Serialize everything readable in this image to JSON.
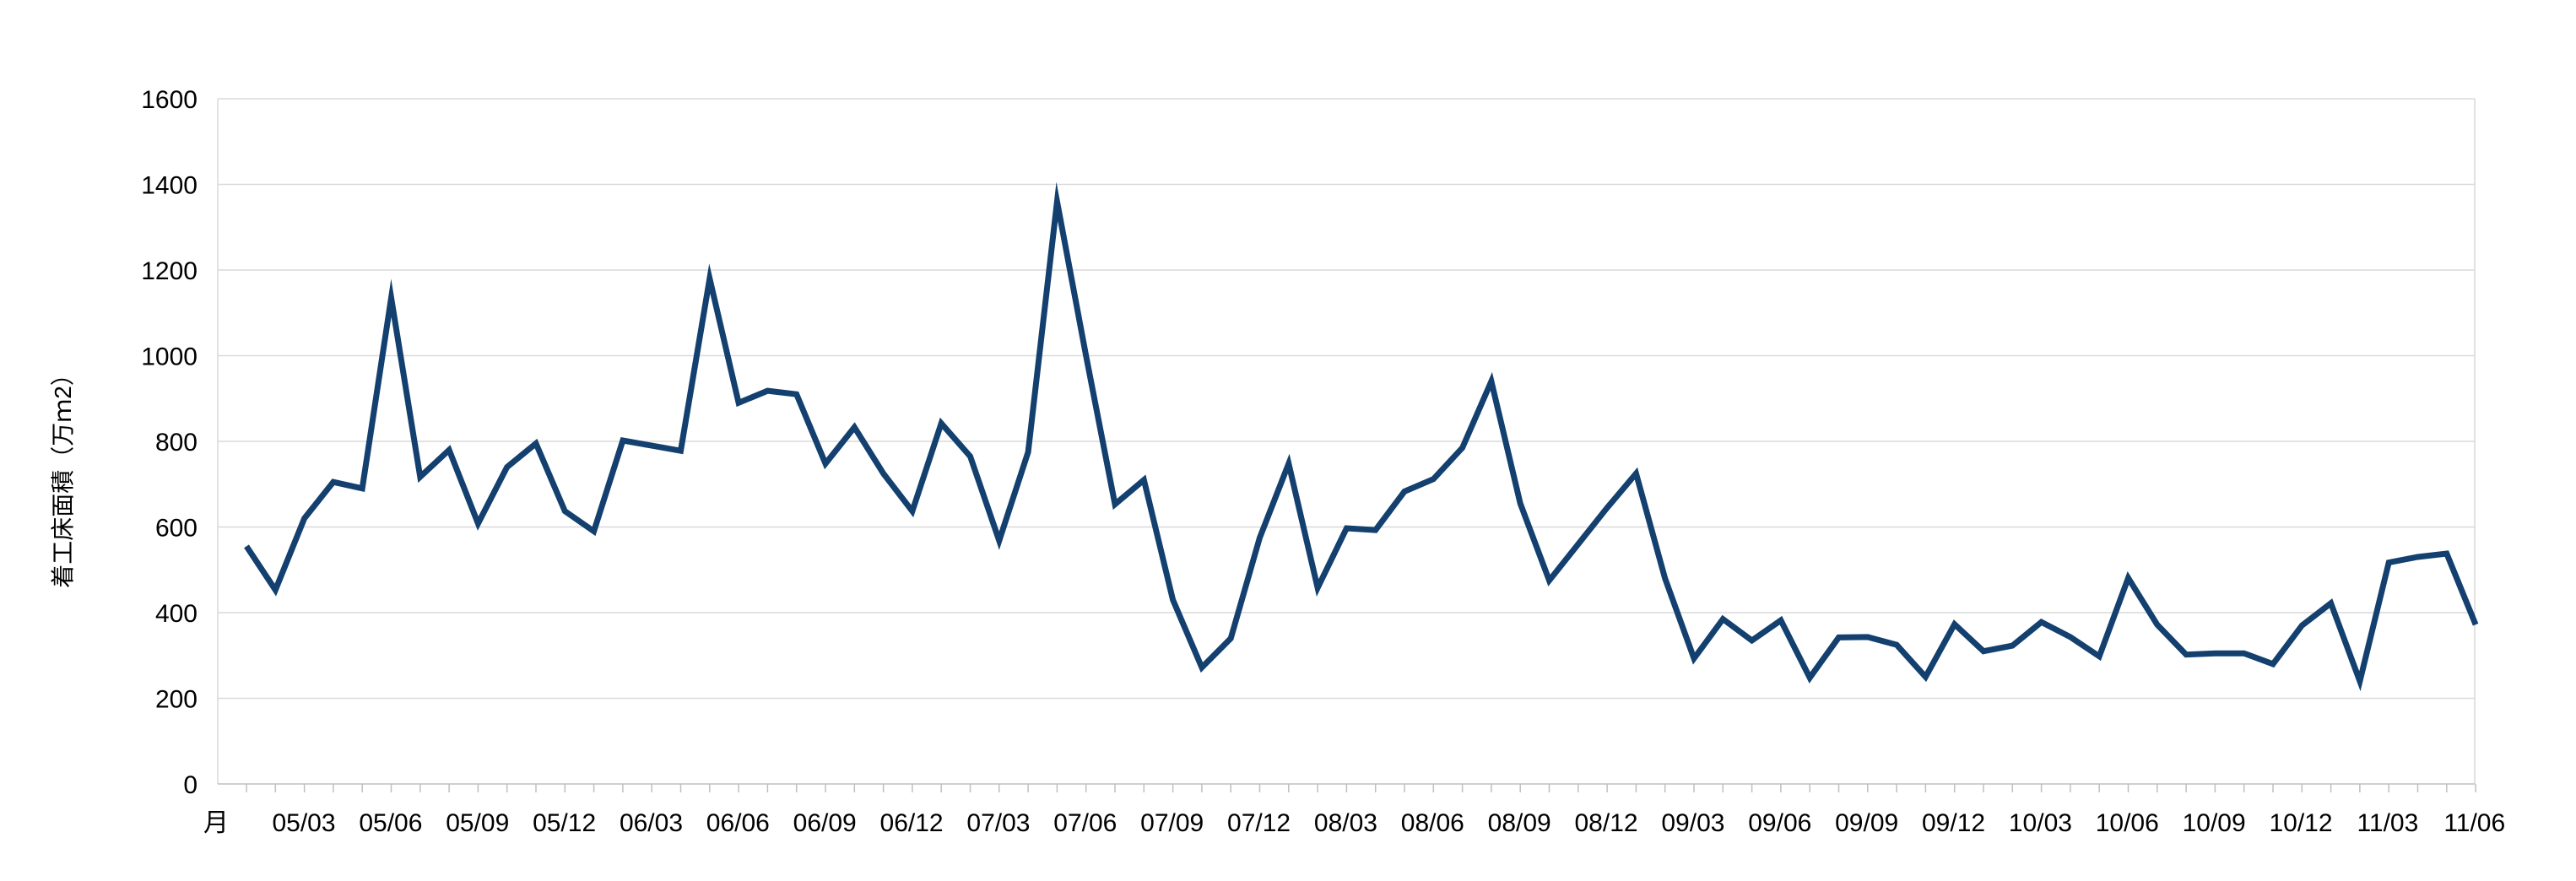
{
  "chart_data": {
    "type": "line",
    "title": "",
    "xlabel": "",
    "ylabel": "着工床面積（万ｍ2）",
    "x_first_label": "月",
    "ylim": [
      0,
      1600
    ],
    "yticks": [
      "0",
      "200",
      "400",
      "600",
      "800",
      "1000",
      "1200",
      "1400",
      "1600"
    ],
    "x_tick_labels": [
      "05/03",
      "05/06",
      "05/09",
      "05/12",
      "06/03",
      "06/06",
      "06/09",
      "06/12",
      "07/03",
      "07/06",
      "07/09",
      "07/12",
      "08/03",
      "08/06",
      "08/09",
      "08/12",
      "09/03",
      "09/06",
      "09/09",
      "09/12",
      "10/03",
      "10/06",
      "10/09",
      "10/12",
      "11/03",
      "11/06"
    ],
    "x": [
      "05/01",
      "05/02",
      "05/03",
      "05/04",
      "05/05",
      "05/06",
      "05/07",
      "05/08",
      "05/09",
      "05/10",
      "05/11",
      "05/12",
      "06/01",
      "06/02",
      "06/03",
      "06/04",
      "06/05",
      "06/06",
      "06/07",
      "06/08",
      "06/09",
      "06/10",
      "06/11",
      "06/12",
      "07/01",
      "07/02",
      "07/03",
      "07/04",
      "07/05",
      "07/06",
      "07/07",
      "07/08",
      "07/09",
      "07/10",
      "07/11",
      "07/12",
      "08/01",
      "08/02",
      "08/03",
      "08/04",
      "08/05",
      "08/06",
      "08/07",
      "08/08",
      "08/09",
      "08/10",
      "08/11",
      "08/12",
      "09/01",
      "09/02",
      "09/03",
      "09/04",
      "09/05",
      "09/06",
      "09/07",
      "09/08",
      "09/09",
      "09/10",
      "09/11",
      "09/12",
      "10/01",
      "10/02",
      "10/03",
      "10/04",
      "10/05",
      "10/06",
      "10/07",
      "10/08",
      "10/09",
      "10/10",
      "10/11",
      "10/12",
      "11/01",
      "11/02",
      "11/03",
      "11/04",
      "11/05",
      "11/06"
    ],
    "series": [
      {
        "color": "#13406f",
        "values": [
          555,
          453,
          620,
          705,
          690,
          1135,
          717,
          780,
          608,
          740,
          795,
          637,
          590,
          802,
          790,
          778,
          1180,
          890,
          918,
          910,
          748,
          833,
          725,
          637,
          842,
          765,
          568,
          775,
          1360,
          1000,
          653,
          710,
          430,
          272,
          340,
          575,
          748,
          458,
          597,
          593,
          683,
          712,
          785,
          940,
          655,
          475,
          560,
          645,
          725,
          480,
          293,
          385,
          335,
          382,
          248,
          342,
          343,
          325,
          250,
          373,
          310,
          323,
          378,
          343,
          298,
          481,
          372,
          302,
          305,
          305,
          280,
          370,
          422,
          240,
          517,
          530,
          538,
          372
        ]
      }
    ],
    "grid": true,
    "legend": "none"
  }
}
